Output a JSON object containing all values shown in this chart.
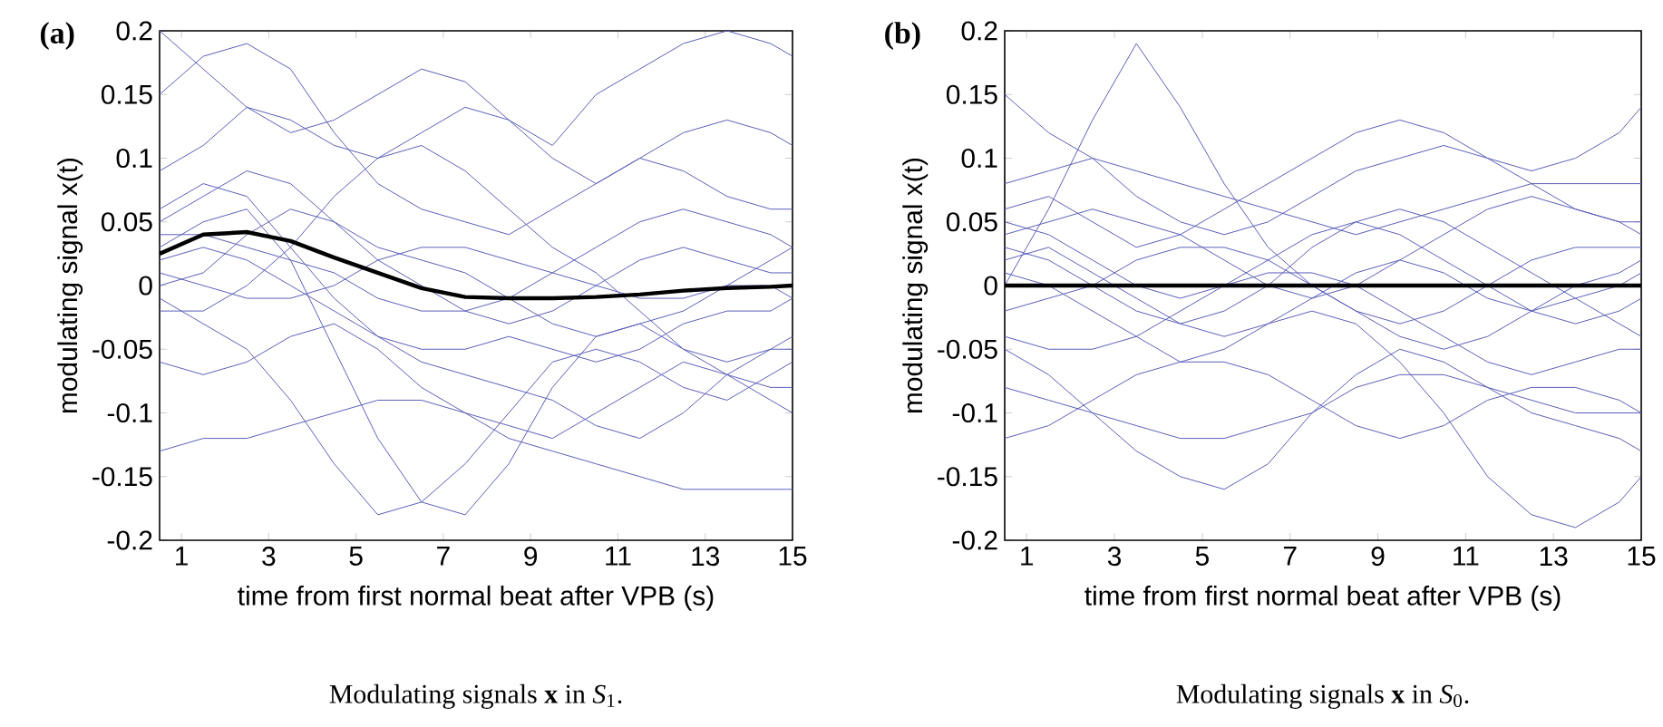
{
  "chart_data": [
    {
      "type": "line",
      "title": "(a)",
      "xlabel": "time from first normal beat after VPB (s)",
      "ylabel": "modulating signal x(t)",
      "annotations": [
        "Modulating signals **x** in *S*$_{1}$."
      ],
      "x": [
        0.5,
        1.5,
        2.5,
        3.5,
        4.5,
        5.5,
        6.5,
        7.5,
        8.5,
        9.5,
        10.5,
        11.5,
        12.5,
        13.5,
        14.5,
        15
      ],
      "xlim": [
        0.5,
        15
      ],
      "xticks": [
        1,
        3,
        5,
        7,
        9,
        11,
        13,
        15
      ],
      "ylim": [
        -0.2,
        0.2
      ],
      "yticks": [
        -0.2,
        -0.15,
        -0.1,
        -0.05,
        0,
        0.05,
        0.1,
        0.15,
        0.2
      ],
      "series": [
        {
          "color": "#5a5eb9",
          "values": [
            0.05,
            0.07,
            0.09,
            0.08,
            0.05,
            0.02,
            0.0,
            -0.02,
            -0.03,
            -0.02,
            0.0,
            0.02,
            0.03,
            0.02,
            0.01,
            0.01
          ]
        },
        {
          "color": "#5a5eb9",
          "values": [
            0.02,
            0.03,
            0.02,
            0.0,
            -0.02,
            -0.04,
            -0.05,
            -0.05,
            -0.04,
            -0.05,
            -0.06,
            -0.05,
            -0.03,
            -0.02,
            -0.02,
            -0.01
          ]
        },
        {
          "color": "#5a5eb9",
          "values": [
            0.15,
            0.18,
            0.19,
            0.17,
            0.12,
            0.08,
            0.06,
            0.05,
            0.04,
            0.06,
            0.08,
            0.1,
            0.09,
            0.07,
            0.06,
            0.06
          ]
        },
        {
          "color": "#5a5eb9",
          "values": [
            -0.06,
            -0.07,
            -0.06,
            -0.04,
            -0.03,
            -0.05,
            -0.08,
            -0.1,
            -0.11,
            -0.12,
            -0.1,
            -0.08,
            -0.06,
            -0.07,
            -0.09,
            -0.1
          ]
        },
        {
          "color": "#5a5eb9",
          "values": [
            0.0,
            0.01,
            0.04,
            0.06,
            0.05,
            0.03,
            0.02,
            0.01,
            -0.01,
            -0.03,
            -0.04,
            -0.03,
            -0.02,
            0.0,
            0.02,
            0.03
          ]
        },
        {
          "color": "#5a5eb9",
          "values": [
            -0.13,
            -0.12,
            -0.12,
            -0.11,
            -0.1,
            -0.09,
            -0.09,
            -0.1,
            -0.12,
            -0.13,
            -0.14,
            -0.15,
            -0.16,
            -0.16,
            -0.16,
            -0.16
          ]
        },
        {
          "color": "#5a5eb9",
          "values": [
            0.09,
            0.11,
            0.14,
            0.13,
            0.11,
            0.1,
            0.12,
            0.14,
            0.13,
            0.1,
            0.08,
            0.1,
            0.12,
            0.13,
            0.12,
            0.11
          ]
        },
        {
          "color": "#5a5eb9",
          "values": [
            0.03,
            0.05,
            0.06,
            0.02,
            -0.05,
            -0.12,
            -0.17,
            -0.18,
            -0.14,
            -0.08,
            -0.04,
            -0.03,
            -0.05,
            -0.06,
            -0.05,
            -0.05
          ]
        },
        {
          "color": "#5a5eb9",
          "values": [
            0.01,
            0.0,
            -0.01,
            -0.01,
            0.0,
            0.02,
            0.03,
            0.03,
            0.02,
            0.01,
            0.0,
            -0.01,
            -0.01,
            0.0,
            0.0,
            -0.01
          ]
        },
        {
          "color": "#5a5eb9",
          "values": [
            0.04,
            0.04,
            0.03,
            0.02,
            0.01,
            -0.01,
            -0.02,
            -0.02,
            -0.01,
            0.01,
            0.03,
            0.05,
            0.06,
            0.05,
            0.04,
            0.03
          ]
        },
        {
          "color": "#5a5eb9",
          "values": [
            -0.02,
            -0.02,
            0.0,
            0.03,
            0.07,
            0.1,
            0.11,
            0.09,
            0.06,
            0.03,
            0.01,
            -0.02,
            -0.05,
            -0.07,
            -0.08,
            -0.08
          ]
        },
        {
          "color": "#5a5eb9",
          "values": [
            0.06,
            0.08,
            0.07,
            0.03,
            -0.01,
            -0.04,
            -0.06,
            -0.07,
            -0.08,
            -0.09,
            -0.11,
            -0.12,
            -0.1,
            -0.07,
            -0.05,
            -0.04
          ]
        },
        {
          "color": "#5a5eb9",
          "values": [
            0.2,
            0.17,
            0.14,
            0.12,
            0.13,
            0.15,
            0.17,
            0.16,
            0.13,
            0.11,
            0.15,
            0.17,
            0.19,
            0.2,
            0.19,
            0.18
          ]
        },
        {
          "color": "#5a5eb9",
          "values": [
            -0.01,
            -0.03,
            -0.05,
            -0.09,
            -0.14,
            -0.18,
            -0.17,
            -0.14,
            -0.1,
            -0.06,
            -0.05,
            -0.06,
            -0.08,
            -0.09,
            -0.07,
            -0.06
          ]
        },
        {
          "color": "#000000",
          "values": [
            0.025,
            0.04,
            0.042,
            0.035,
            0.022,
            0.01,
            -0.002,
            -0.009,
            -0.01,
            -0.01,
            -0.009,
            -0.007,
            -0.004,
            -0.002,
            -0.001,
            0
          ]
        }
      ]
    },
    {
      "type": "line",
      "title": "(b)",
      "xlabel": "time from first normal beat after VPB (s)",
      "ylabel": "modulating signal x(t)",
      "annotations": [
        "Modulating signals **x** in *S*$_{0}$."
      ],
      "x": [
        0.5,
        1.5,
        2.5,
        3.5,
        4.5,
        5.5,
        6.5,
        7.5,
        8.5,
        9.5,
        10.5,
        11.5,
        12.5,
        13.5,
        14.5,
        15
      ],
      "xlim": [
        0.5,
        15
      ],
      "xticks": [
        1,
        3,
        5,
        7,
        9,
        11,
        13,
        15
      ],
      "ylim": [
        -0.2,
        0.2
      ],
      "yticks": [
        -0.2,
        -0.15,
        -0.1,
        -0.05,
        0,
        0.05,
        0.1,
        0.15,
        0.2
      ],
      "series": [
        {
          "color": "#5a5eb9",
          "values": [
            0.15,
            0.12,
            0.1,
            0.07,
            0.05,
            0.04,
            0.05,
            0.07,
            0.09,
            0.1,
            0.11,
            0.1,
            0.09,
            0.1,
            0.12,
            0.14
          ]
        },
        {
          "color": "#5a5eb9",
          "values": [
            0.02,
            0.03,
            0.01,
            -0.01,
            -0.03,
            -0.04,
            -0.03,
            -0.01,
            0.01,
            0.02,
            0.01,
            -0.01,
            -0.02,
            -0.01,
            0.0,
            0.01
          ]
        },
        {
          "color": "#5a5eb9",
          "values": [
            -0.05,
            -0.07,
            -0.1,
            -0.13,
            -0.15,
            -0.16,
            -0.14,
            -0.1,
            -0.07,
            -0.05,
            -0.06,
            -0.08,
            -0.1,
            -0.11,
            -0.12,
            -0.13
          ]
        },
        {
          "color": "#5a5eb9",
          "values": [
            0.04,
            0.05,
            0.06,
            0.05,
            0.04,
            0.02,
            0.0,
            -0.01,
            0.0,
            0.02,
            0.04,
            0.06,
            0.07,
            0.06,
            0.05,
            0.04
          ]
        },
        {
          "color": "#5a5eb9",
          "values": [
            -0.02,
            -0.01,
            0.0,
            0.02,
            0.03,
            0.03,
            0.02,
            0.0,
            -0.02,
            -0.04,
            -0.05,
            -0.04,
            -0.02,
            0.0,
            0.01,
            0.02
          ]
        },
        {
          "color": "#5a5eb9",
          "values": [
            0.08,
            0.09,
            0.1,
            0.09,
            0.08,
            0.07,
            0.06,
            0.05,
            0.04,
            0.05,
            0.06,
            0.07,
            0.08,
            0.08,
            0.08,
            0.08
          ]
        },
        {
          "color": "#5a5eb9",
          "values": [
            -0.12,
            -0.11,
            -0.09,
            -0.07,
            -0.06,
            -0.06,
            -0.07,
            -0.09,
            -0.11,
            -0.12,
            -0.11,
            -0.09,
            -0.08,
            -0.08,
            -0.09,
            -0.1
          ]
        },
        {
          "color": "#5a5eb9",
          "values": [
            0.0,
            0.06,
            0.13,
            0.19,
            0.14,
            0.08,
            0.03,
            0.0,
            -0.02,
            -0.03,
            -0.02,
            0.0,
            0.02,
            0.03,
            0.03,
            0.03
          ]
        },
        {
          "color": "#5a5eb9",
          "values": [
            0.03,
            0.02,
            0.0,
            -0.02,
            -0.03,
            -0.02,
            0.0,
            0.03,
            0.05,
            0.06,
            0.05,
            0.03,
            0.01,
            -0.01,
            -0.03,
            -0.04
          ]
        },
        {
          "color": "#5a5eb9",
          "values": [
            -0.04,
            -0.05,
            -0.05,
            -0.04,
            -0.02,
            0.0,
            0.01,
            0.01,
            0.0,
            -0.02,
            -0.04,
            -0.06,
            -0.07,
            -0.06,
            -0.05,
            -0.05
          ]
        },
        {
          "color": "#5a5eb9",
          "values": [
            0.05,
            0.04,
            0.02,
            0.0,
            -0.01,
            0.0,
            0.02,
            0.04,
            0.05,
            0.04,
            0.02,
            0.0,
            -0.02,
            -0.03,
            -0.02,
            -0.01
          ]
        },
        {
          "color": "#5a5eb9",
          "values": [
            -0.08,
            -0.09,
            -0.1,
            -0.11,
            -0.12,
            -0.12,
            -0.11,
            -0.1,
            -0.08,
            -0.07,
            -0.07,
            -0.08,
            -0.09,
            -0.1,
            -0.1,
            -0.1
          ]
        },
        {
          "color": "#5a5eb9",
          "values": [
            0.01,
            0.0,
            -0.02,
            -0.04,
            -0.06,
            -0.05,
            -0.03,
            -0.02,
            -0.03,
            -0.06,
            -0.1,
            -0.15,
            -0.18,
            -0.19,
            -0.17,
            -0.15
          ]
        },
        {
          "color": "#5a5eb9",
          "values": [
            0.06,
            0.07,
            0.05,
            0.03,
            0.04,
            0.06,
            0.08,
            0.1,
            0.12,
            0.13,
            0.12,
            0.1,
            0.08,
            0.06,
            0.05,
            0.05
          ]
        },
        {
          "color": "#000000",
          "values": [
            0,
            0,
            0,
            0,
            0,
            0,
            0,
            0,
            0,
            0,
            0,
            0,
            0,
            0,
            0,
            0
          ]
        }
      ]
    }
  ]
}
